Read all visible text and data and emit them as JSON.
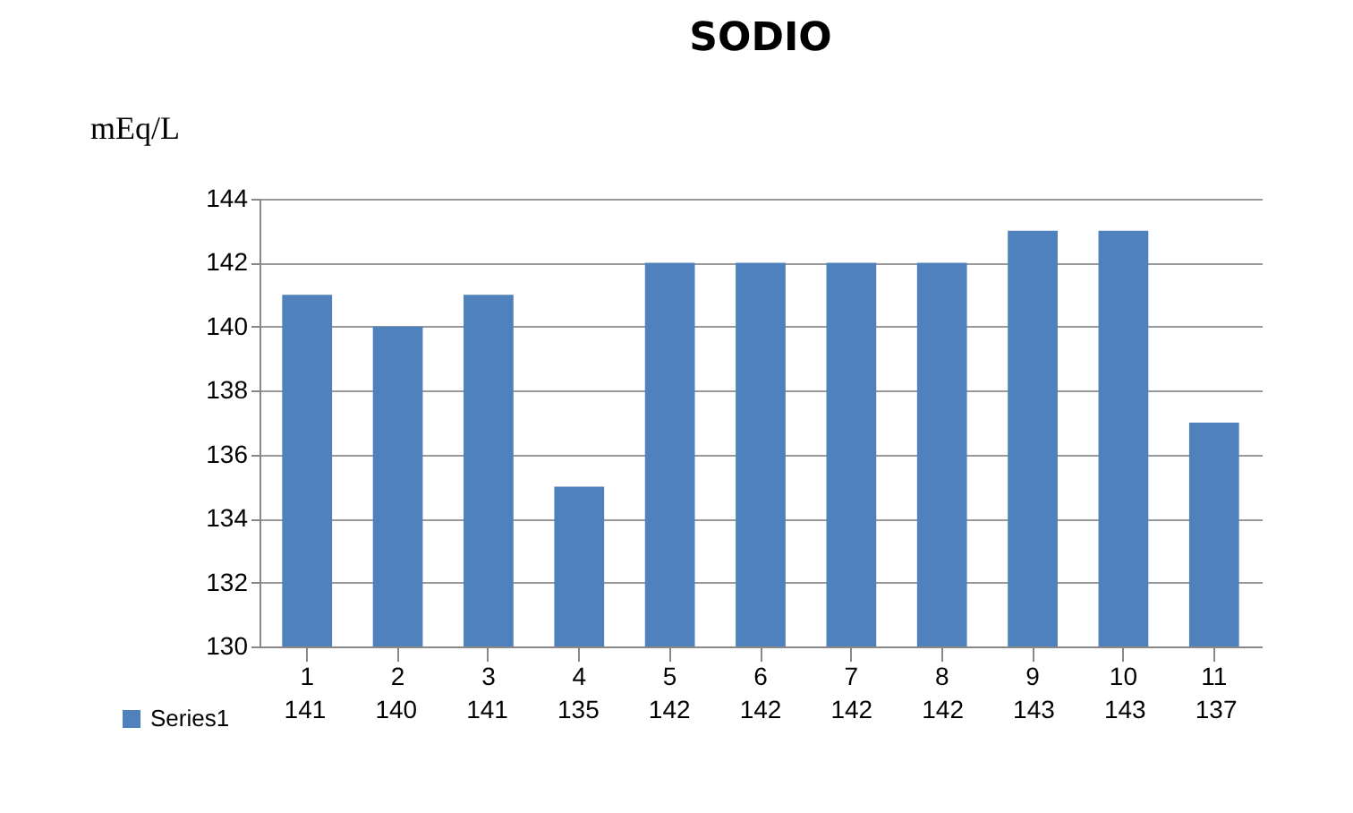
{
  "chart_data": {
    "type": "bar",
    "title": "SODIO",
    "ylabel": "mEq/L",
    "categories": [
      "1",
      "2",
      "3",
      "4",
      "5",
      "6",
      "7",
      "8",
      "9",
      "10",
      "11"
    ],
    "series": [
      {
        "name": "Series1",
        "color": "#4f81bd",
        "values": [
          141,
          140,
          141,
          135,
          142,
          142,
          142,
          142,
          143,
          143,
          137
        ]
      }
    ],
    "ylim": [
      130,
      144
    ],
    "yticks": [
      130,
      132,
      134,
      136,
      138,
      140,
      142,
      144
    ],
    "grid": "y",
    "legend": "bottom",
    "data_labels": true
  }
}
